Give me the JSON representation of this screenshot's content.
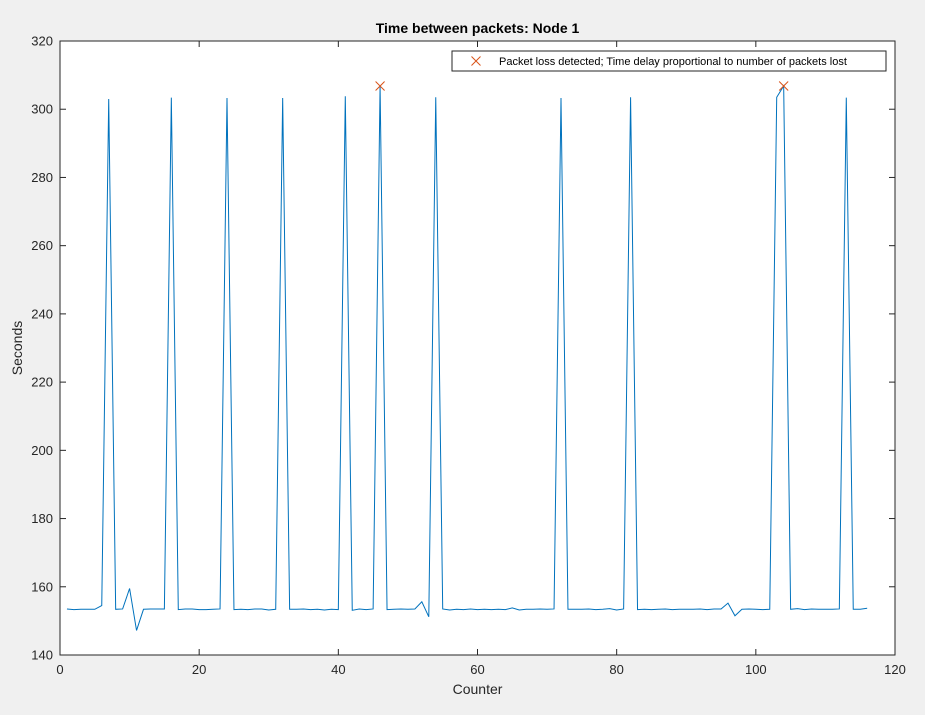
{
  "chart_data": {
    "type": "line",
    "title": "Time between packets: Node 1",
    "xlabel": "Counter",
    "ylabel": "Seconds",
    "xlim": [
      0,
      120
    ],
    "ylim": [
      140,
      320
    ],
    "xticks": [
      0,
      20,
      40,
      60,
      80,
      100,
      120
    ],
    "yticks": [
      140,
      160,
      180,
      200,
      220,
      240,
      260,
      280,
      300,
      320
    ],
    "grid": false,
    "legend_position": "top-right",
    "colors": {
      "line": "#0072bd",
      "marker": "#d95319",
      "axes_bg": "#ffffff",
      "figure_bg": "#f0f0f0",
      "axis": "#262626"
    },
    "series": [
      {
        "type": "line",
        "x": [
          1,
          2,
          3,
          4,
          5,
          6,
          7,
          8,
          9,
          10,
          11,
          12,
          13,
          14,
          15,
          16,
          17,
          18,
          19,
          20,
          21,
          22,
          23,
          24,
          25,
          26,
          27,
          28,
          29,
          30,
          31,
          32,
          33,
          34,
          35,
          36,
          37,
          38,
          39,
          40,
          41,
          42,
          43,
          44,
          45,
          46,
          47,
          48,
          49,
          50,
          51,
          52,
          53,
          54,
          55,
          56,
          57,
          58,
          59,
          60,
          61,
          62,
          63,
          64,
          65,
          66,
          67,
          68,
          69,
          70,
          71,
          72,
          73,
          74,
          75,
          76,
          77,
          78,
          79,
          80,
          81,
          82,
          83,
          84,
          85,
          86,
          87,
          88,
          89,
          90,
          91,
          92,
          93,
          94,
          95,
          96,
          97,
          98,
          99,
          100,
          101,
          102,
          103,
          104,
          105,
          106,
          107,
          108,
          109,
          110,
          111,
          112,
          113,
          114,
          115,
          116
        ],
        "y": [
          153.5,
          153.3,
          153.4,
          153.4,
          153.4,
          154.5,
          303,
          153.4,
          153.5,
          159.5,
          147.2,
          153.4,
          153.5,
          153.5,
          153.5,
          303.4,
          153.3,
          153.5,
          153.5,
          153.3,
          153.3,
          153.4,
          153.5,
          303.3,
          153.3,
          153.4,
          153.3,
          153.5,
          153.5,
          153.2,
          153.4,
          303.3,
          153.4,
          153.4,
          153.5,
          153.3,
          153.4,
          153.2,
          153.4,
          153.3,
          303.8,
          153.1,
          153.5,
          153.3,
          153.5,
          306.8,
          153.3,
          153.4,
          153.5,
          153.4,
          153.5,
          155.6,
          151.2,
          303.5,
          153.5,
          153.2,
          153.4,
          153.3,
          153.5,
          153.3,
          153.4,
          153.3,
          153.4,
          153.3,
          153.8,
          153.2,
          153.4,
          153.4,
          153.5,
          153.4,
          153.5,
          303.3,
          153.4,
          153.4,
          153.4,
          153.5,
          153.3,
          153.4,
          153.6,
          153.2,
          153.5,
          303.5,
          153.3,
          153.4,
          153.3,
          153.4,
          153.5,
          153.3,
          153.4,
          153.4,
          153.4,
          153.5,
          153.3,
          153.5,
          153.5,
          155.2,
          151.5,
          153.4,
          153.5,
          153.4,
          153.3,
          153.4,
          303.5,
          306.8,
          153.4,
          153.6,
          153.3,
          153.5,
          153.4,
          153.4,
          153.4,
          153.5,
          303.4,
          153.4,
          153.4,
          153.7
        ]
      },
      {
        "name": "Packet loss detected; Time delay proportional to number of packets lost",
        "type": "scatter",
        "marker": "x",
        "x": [
          46,
          104
        ],
        "y": [
          306.8,
          306.8
        ]
      }
    ]
  }
}
